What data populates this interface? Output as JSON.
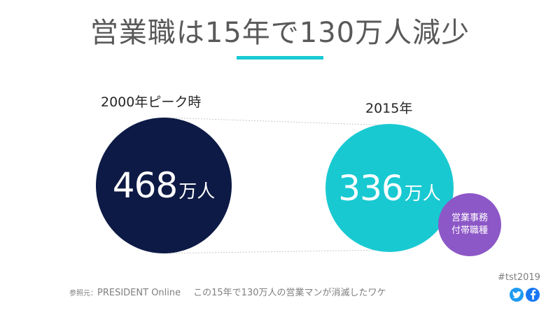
{
  "header": {
    "title": "営業職は15年で130万人減少"
  },
  "left_item": {
    "label": "2000年ピーク時",
    "value": "468",
    "unit": "万人"
  },
  "right_item": {
    "label": "2015年",
    "value": "336",
    "unit": "万人"
  },
  "small_item": {
    "line1": "営業事務",
    "line2": "付帯職種"
  },
  "footer": {
    "hashtag": "#tst2019",
    "source_prefix": "参照元：",
    "source_name": "PRESIDENT Online",
    "source_article": "この15年で130万人の営業マンが消滅したワケ"
  },
  "colors": {
    "accent": "#19c9d2",
    "dark_navy": "#0d1a45",
    "purple": "#8c57c7"
  },
  "icons": [
    "twitter-icon",
    "facebook-icon"
  ]
}
